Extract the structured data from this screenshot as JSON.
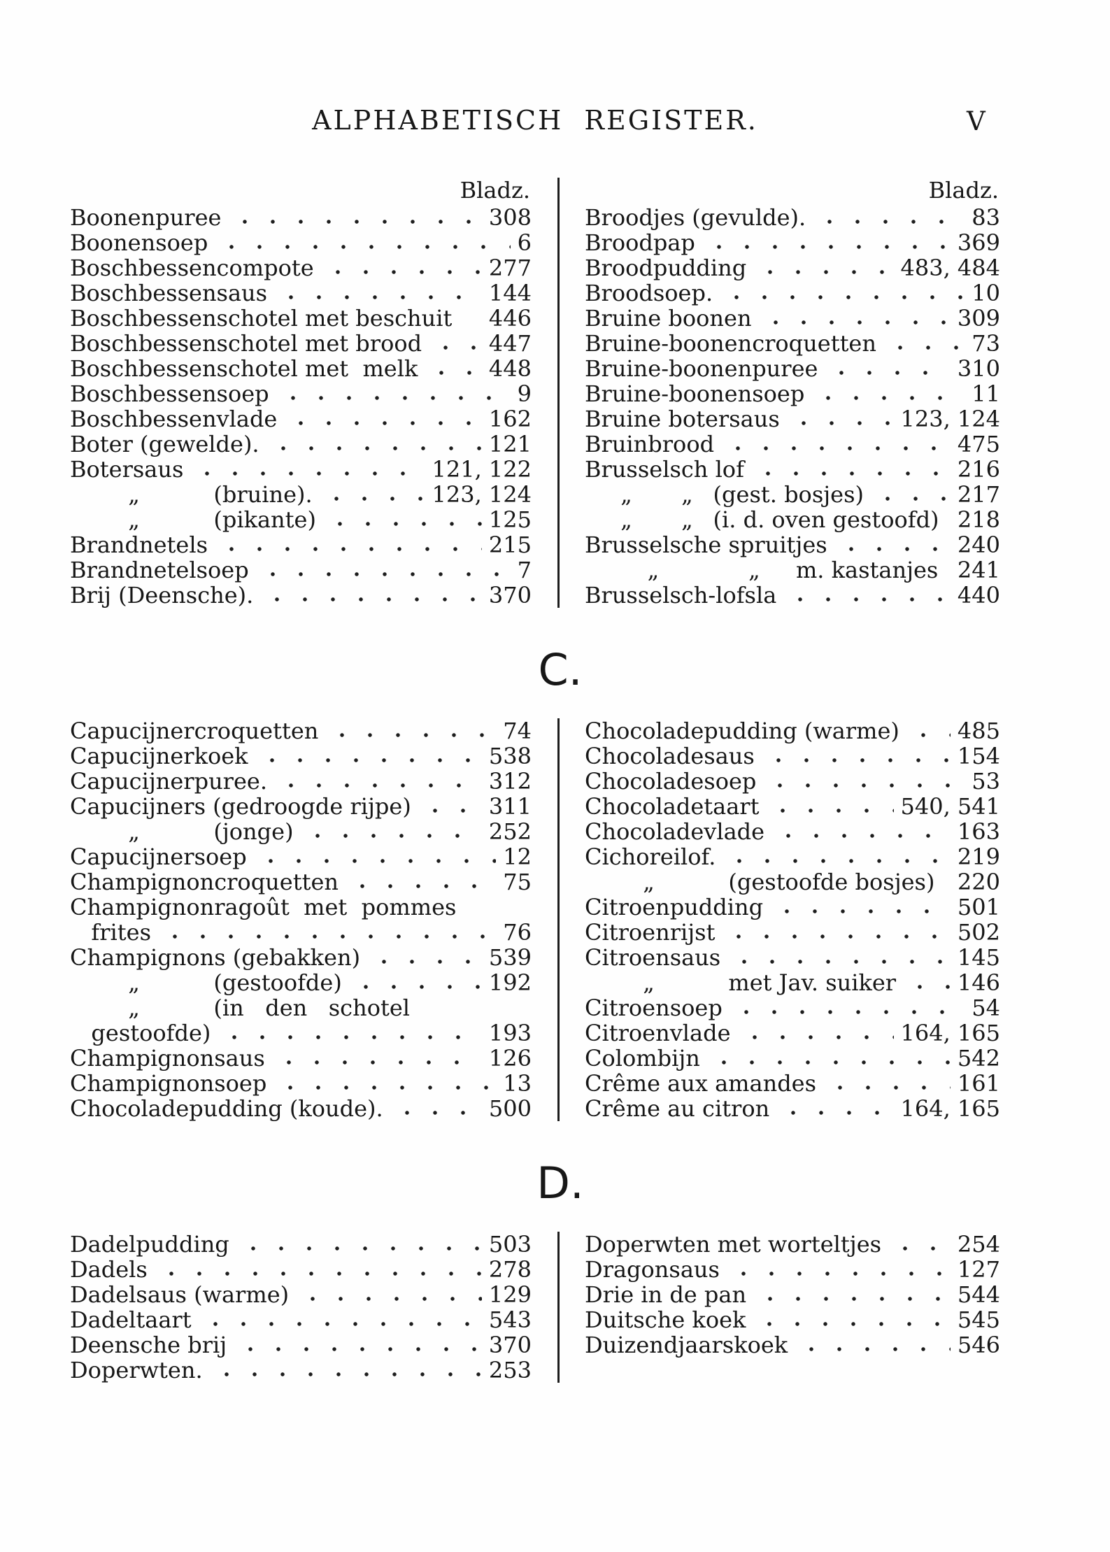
{
  "page": {
    "header_title": "ALPHABETISCH  REGISTER.",
    "page_number": "V",
    "column_header": "Bladz.",
    "ditto_mark": "„",
    "ink_color": "#1d1d1d",
    "paper_color": "#fefefe"
  },
  "sections": [
    {
      "letter": "",
      "show_column_headers": true,
      "columns": [
        {
          "entries": [
            {
              "text": "Boonenpuree",
              "page": "308"
            },
            {
              "text": "Boonensoep",
              "page": "6"
            },
            {
              "text": "Boschbessencompote",
              "page": "277"
            },
            {
              "text": "Boschbessensaus",
              "page": "144"
            },
            {
              "text": "Boschbessenschotel met beschuit",
              "page": "446",
              "nodots": true
            },
            {
              "text": "Boschbessenschotel met brood",
              "page": "447"
            },
            {
              "text": "Boschbessenschotel met  melk",
              "page": "448"
            },
            {
              "text": "Boschbessensoep",
              "page": "9"
            },
            {
              "text": "Boschbessenvlade",
              "page": "162"
            },
            {
              "text": "Boter (gewelde).",
              "page": "121"
            },
            {
              "text": "Botersaus",
              "page": "121, 122"
            },
            {
              "text": "(bruine).",
              "page": "123, 124",
              "ditto": 1
            },
            {
              "text": "(pikante)",
              "page": "125",
              "ditto": 1
            },
            {
              "text": "Brandnetels",
              "page": "215"
            },
            {
              "text": "Brandnetelsoep",
              "page": "7"
            },
            {
              "text": "Brij (Deensche).",
              "page": "370"
            }
          ]
        },
        {
          "entries": [
            {
              "text": "Broodjes (gevulde).",
              "page": "83"
            },
            {
              "text": "Broodpap",
              "page": "369"
            },
            {
              "text": "Broodpudding",
              "page": "483, 484"
            },
            {
              "text": "Broodsoep.",
              "page": "10"
            },
            {
              "text": "Bruine boonen",
              "page": "309"
            },
            {
              "text": "Bruine-boonencroquetten",
              "page": "73"
            },
            {
              "text": "Bruine-boonenpuree",
              "page": "310"
            },
            {
              "text": "Bruine-boonensoep",
              "page": "11"
            },
            {
              "text": "Bruine botersaus",
              "page": "123, 124"
            },
            {
              "text": "Bruinbrood",
              "page": "475"
            },
            {
              "text": "Brusselsch lof",
              "page": "216"
            },
            {
              "text": "(gest. bosjes)",
              "page": "217",
              "ditto": 2
            },
            {
              "text": "(i. d. oven gestoofd)",
              "page": "218",
              "ditto": 2,
              "nodots": true
            },
            {
              "text": "Brusselsche spruitjes",
              "page": "240"
            },
            {
              "text": "m. kastanjes",
              "page": "241",
              "ditto": 2,
              "spread": true,
              "nodots": true
            },
            {
              "text": "Brusselsch-lofsla",
              "page": "440"
            }
          ]
        }
      ]
    },
    {
      "letter": "C.",
      "show_column_headers": false,
      "columns": [
        {
          "entries": [
            {
              "text": "Capucijnercroquetten",
              "page": "74"
            },
            {
              "text": "Capucijnerkoek",
              "page": "538"
            },
            {
              "text": "Capucijnerpuree.",
              "page": "312"
            },
            {
              "text": "Capucijners (gedroogde rijpe)",
              "page": "311"
            },
            {
              "text": "(jonge)",
              "page": "252",
              "ditto": 1
            },
            {
              "text": "Capucijnersoep",
              "page": "12"
            },
            {
              "text": "Champignoncroquetten",
              "page": "75"
            },
            {
              "text": "Champignonragoût  met  pommes",
              "page": null,
              "nodots": true
            },
            {
              "text": "frites",
              "page": "76",
              "cont": true
            },
            {
              "text": "Champignons (gebakken)",
              "page": "539"
            },
            {
              "text": "(gestoofde)",
              "page": "192",
              "ditto": 1
            },
            {
              "text": "(in   den   schotel",
              "page": null,
              "ditto": 1,
              "nodots": true
            },
            {
              "text": "gestoofde)",
              "page": "193",
              "cont": true
            },
            {
              "text": "Champignonsaus",
              "page": "126"
            },
            {
              "text": "Champignonsoep",
              "page": "13"
            },
            {
              "text": "Chocoladepudding (koude).",
              "page": "500"
            }
          ]
        },
        {
          "entries": [
            {
              "text": "Chocoladepudding (warme)",
              "page": "485"
            },
            {
              "text": "Chocoladesaus",
              "page": "154"
            },
            {
              "text": "Chocoladesoep",
              "page": "53"
            },
            {
              "text": "Chocoladetaart",
              "page": "540, 541"
            },
            {
              "text": "Chocoladevlade",
              "page": "163"
            },
            {
              "text": "Cichoreilof.",
              "page": "219"
            },
            {
              "text": "(gestoofde bosjes)",
              "page": "220",
              "ditto": 1
            },
            {
              "text": "Citroenpudding",
              "page": "501"
            },
            {
              "text": "Citroenrijst",
              "page": "502"
            },
            {
              "text": "Citroensaus",
              "page": "145"
            },
            {
              "text": "met Jav. suiker",
              "page": "146",
              "ditto": 1
            },
            {
              "text": "Citroensoep",
              "page": "54"
            },
            {
              "text": "Citroenvlade",
              "page": "164, 165"
            },
            {
              "text": "Colombijn",
              "page": "542"
            },
            {
              "text": "Crême aux amandes",
              "page": "161"
            },
            {
              "text": "Crême au citron",
              "page": "164, 165"
            }
          ]
        }
      ]
    },
    {
      "letter": "D.",
      "show_column_headers": false,
      "columns": [
        {
          "entries": [
            {
              "text": "Dadelpudding",
              "page": "503"
            },
            {
              "text": "Dadels",
              "page": "278"
            },
            {
              "text": "Dadelsaus (warme)",
              "page": "129"
            },
            {
              "text": "Dadeltaart",
              "page": "543"
            },
            {
              "text": "Deensche brij",
              "page": "370"
            },
            {
              "text": "Doperwten.",
              "page": "253"
            }
          ]
        },
        {
          "entries": [
            {
              "text": "Doperwten met worteltjes",
              "page": "254"
            },
            {
              "text": "Dragonsaus",
              "page": "127"
            },
            {
              "text": "Drie in de pan",
              "page": "544"
            },
            {
              "text": "Duitsche koek",
              "page": "545"
            },
            {
              "text": "Duizendjaarskoek",
              "page": "546"
            }
          ]
        }
      ]
    }
  ]
}
